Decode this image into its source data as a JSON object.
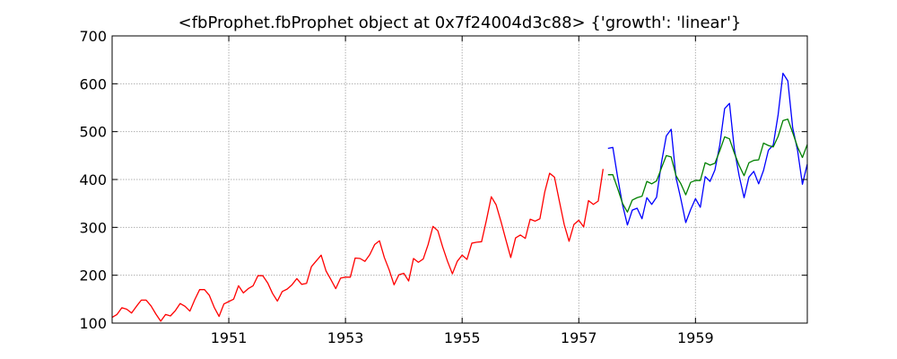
{
  "chart_data": {
    "type": "line",
    "title": "<fbProphet.fbProphet object at 0x7f24004d3c88> {'growth': 'linear'}",
    "xlabel": "",
    "ylabel": "",
    "xlim": [
      1949.0,
      1960.917
    ],
    "ylim": [
      100,
      700
    ],
    "grid": true,
    "x_ticks": [
      1951,
      1953,
      1955,
      1957,
      1959
    ],
    "x_tick_labels": [
      "1951",
      "1953",
      "1955",
      "1957",
      "1959"
    ],
    "y_ticks": [
      100,
      200,
      300,
      400,
      500,
      600,
      700
    ],
    "y_tick_labels": [
      "100",
      "200",
      "300",
      "400",
      "500",
      "600",
      "700"
    ],
    "series": [
      {
        "color": "#ff0000",
        "x_start": 1949.0,
        "x_step": 0.08333,
        "values": [
          112,
          118,
          132,
          129,
          121,
          135,
          148,
          148,
          136,
          119,
          104,
          118,
          115,
          126,
          141,
          135,
          125,
          149,
          170,
          170,
          158,
          133,
          114,
          140,
          145,
          150,
          178,
          163,
          172,
          178,
          199,
          199,
          184,
          162,
          146,
          166,
          171,
          180,
          193,
          181,
          183,
          218,
          230,
          242,
          209,
          191,
          172,
          194,
          196,
          196,
          236,
          235,
          229,
          243,
          264,
          272,
          237,
          211,
          180,
          201,
          204,
          188,
          235,
          227,
          234,
          264,
          302,
          293,
          259,
          229,
          203,
          229,
          242,
          233,
          267,
          269,
          270,
          315,
          364,
          347,
          312,
          274,
          237,
          278,
          284,
          277,
          317,
          313,
          318,
          374,
          413,
          405,
          355,
          306,
          271,
          306,
          315,
          301,
          356,
          348,
          355,
          422
        ]
      },
      {
        "color": "#0000ff",
        "x_start": 1957.5,
        "x_step": 0.08333,
        "values": [
          465,
          467,
          404,
          347,
          305,
          336,
          340,
          318,
          362,
          348,
          363,
          435,
          491,
          505,
          404,
          359,
          310,
          337,
          360,
          342,
          406,
          396,
          420,
          472,
          548,
          559,
          463,
          407,
          362,
          405,
          417,
          391,
          419,
          461,
          472,
          535,
          622,
          606,
          508,
          461,
          390,
          432
        ]
      },
      {
        "color": "#008000",
        "x_start": 1957.5,
        "x_step": 0.08333,
        "values": [
          410,
          410,
          381,
          350,
          332,
          357,
          362,
          365,
          396,
          391,
          397,
          424,
          450,
          447,
          408,
          391,
          368,
          394,
          398,
          398,
          435,
          430,
          434,
          460,
          489,
          485,
          455,
          429,
          408,
          435,
          440,
          441,
          476,
          471,
          468,
          490,
          523,
          526,
          498,
          468,
          446,
          473
        ]
      }
    ]
  }
}
